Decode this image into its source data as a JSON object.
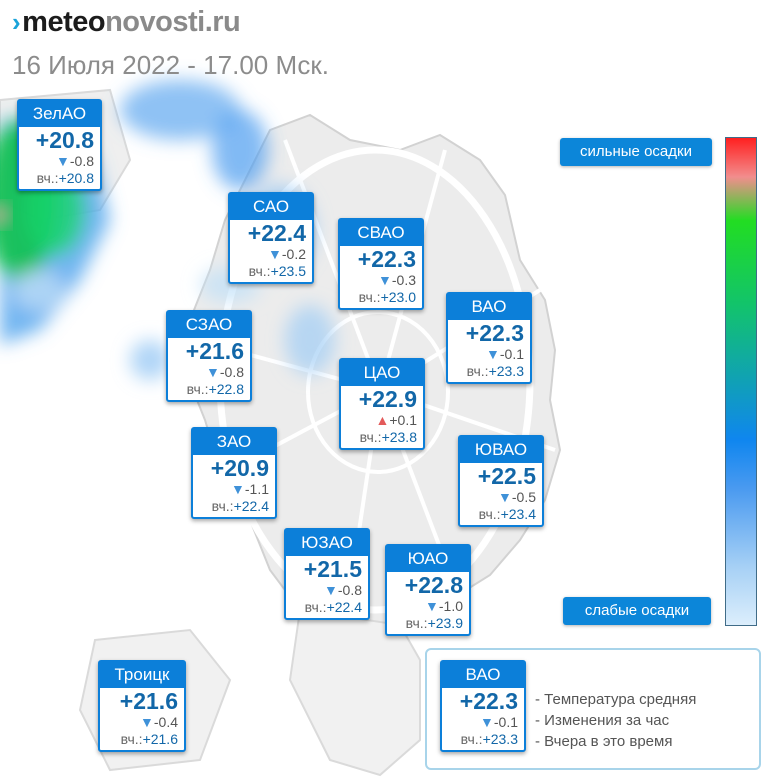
{
  "header": {
    "logo_main": "meteo",
    "logo_secondary": "novosti.ru",
    "date_line": "16 Июля 2022 - 17.00 Мск."
  },
  "districts": [
    {
      "name": "ЗелАО",
      "temp": "+20.8",
      "trend": "down",
      "change": "-0.8",
      "yesterday_label": "вч.:",
      "yesterday": "+20.8"
    },
    {
      "name": "САО",
      "temp": "+22.4",
      "trend": "down",
      "change": "-0.2",
      "yesterday_label": "вч.:",
      "yesterday": "+23.5"
    },
    {
      "name": "СВАО",
      "temp": "+22.3",
      "trend": "down",
      "change": "-0.3",
      "yesterday_label": "вч.:",
      "yesterday": "+23.0"
    },
    {
      "name": "ВАО",
      "temp": "+22.3",
      "trend": "down",
      "change": "-0.1",
      "yesterday_label": "вч.:",
      "yesterday": "+23.3"
    },
    {
      "name": "СЗАО",
      "temp": "+21.6",
      "trend": "down",
      "change": "-0.8",
      "yesterday_label": "вч.:",
      "yesterday": "+22.8"
    },
    {
      "name": "ЦАО",
      "temp": "+22.9",
      "trend": "up",
      "change": "+0.1",
      "yesterday_label": "вч.:",
      "yesterday": "+23.8"
    },
    {
      "name": "ЗАО",
      "temp": "+20.9",
      "trend": "down",
      "change": "-1.1",
      "yesterday_label": "вч.:",
      "yesterday": "+22.4"
    },
    {
      "name": "ЮВАО",
      "temp": "+22.5",
      "trend": "down",
      "change": "-0.5",
      "yesterday_label": "вч.:",
      "yesterday": "+23.4"
    },
    {
      "name": "ЮЗАО",
      "temp": "+21.5",
      "trend": "down",
      "change": "-0.8",
      "yesterday_label": "вч.:",
      "yesterday": "+22.4"
    },
    {
      "name": "ЮАО",
      "temp": "+22.8",
      "trend": "down",
      "change": "-1.0",
      "yesterday_label": "вч.:",
      "yesterday": "+23.9"
    },
    {
      "name": "Троицк",
      "temp": "+21.6",
      "trend": "down",
      "change": "-0.4",
      "yesterday_label": "вч.:",
      "yesterday": "+21.6"
    }
  ],
  "scale": {
    "top_label": "сильные осадки",
    "bottom_label": "слабые осадки"
  },
  "legend": {
    "sample": {
      "name": "ВАО",
      "temp": "+22.3",
      "trend": "down",
      "change": "-0.1",
      "yesterday_label": "вч.:",
      "yesterday": "+23.3"
    },
    "line1": "- Температура средняя",
    "line2": "- Изменения за час",
    "line3": "- Вчера в это время"
  },
  "colors": {
    "accent": "#0c7fd9",
    "temp_text": "#1267a8",
    "trend_down": "#3f91d8",
    "trend_up": "#e35a5a",
    "logo_mark": "#1aa3d9"
  }
}
